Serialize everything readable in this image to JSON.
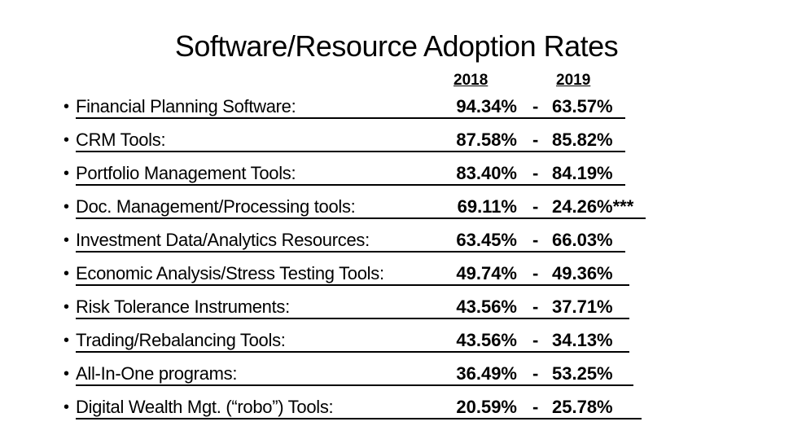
{
  "title": "Software/Resource Adoption Rates",
  "columns": [
    "2018",
    "2019"
  ],
  "separator": "-",
  "rows": [
    {
      "label": "Financial Planning Software:",
      "y2018": "94.34%",
      "y2019": "63.57%"
    },
    {
      "label": "CRM Tools:",
      "y2018": "87.58%",
      "y2019": "85.82%"
    },
    {
      "label": "Portfolio Management Tools:",
      "y2018": "83.40%",
      "y2019": "84.19%"
    },
    {
      "label": "Doc. Management/Processing tools:",
      "y2018": "69.11%",
      "y2019": "24.26%***"
    },
    {
      "label": "Investment Data/Analytics Resources:",
      "y2018": "63.45%",
      "y2019": "66.03%"
    },
    {
      "label": "Economic Analysis/Stress Testing Tools:",
      "y2018": "49.74%",
      "y2019": "49.36%"
    },
    {
      "label": "Risk Tolerance Instruments:",
      "y2018": "43.56%",
      "y2019": "37.71%"
    },
    {
      "label": "Trading/Rebalancing Tools:",
      "y2018": "43.56%",
      "y2019": "34.13%"
    },
    {
      "label": "All-In-One programs:",
      "y2018": "36.49%",
      "y2019": "53.25%"
    },
    {
      "label": "Digital Wealth Mgt. (“robo”) Tools:",
      "y2018": "20.59%",
      "y2019": "25.78%"
    }
  ]
}
